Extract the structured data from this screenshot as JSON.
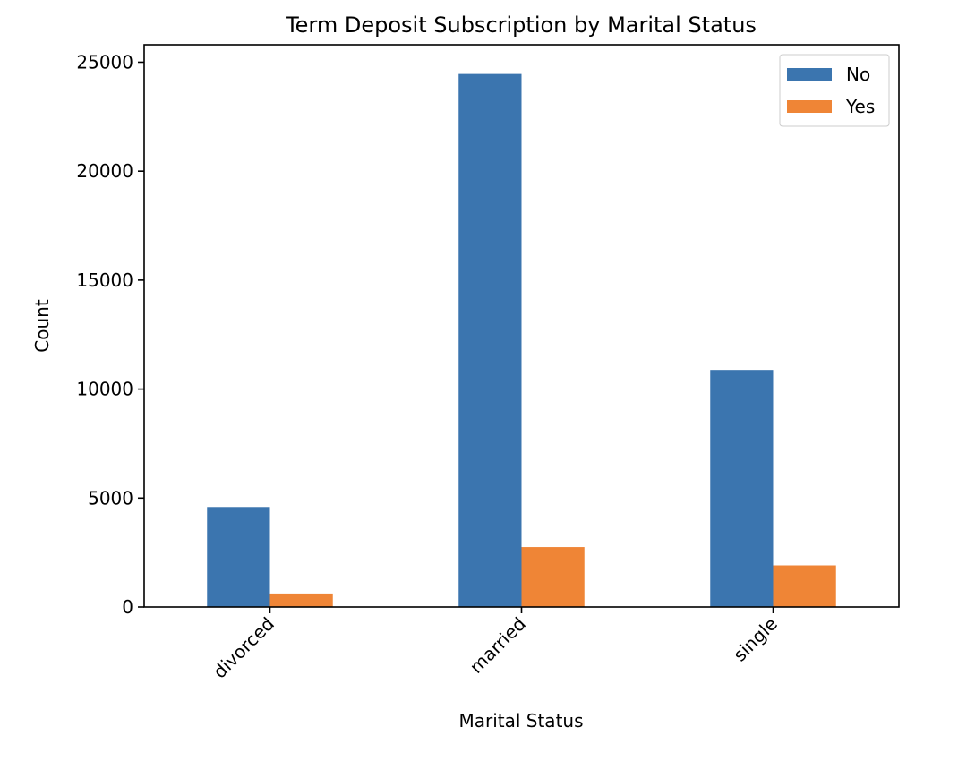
{
  "chart_data": {
    "type": "bar",
    "title": "Term Deposit Subscription by Marital Status",
    "xlabel": "Marital Status",
    "ylabel": "Count",
    "categories": [
      "divorced",
      "married",
      "single"
    ],
    "series": [
      {
        "name": "No",
        "values": [
          4590,
          24460,
          10880
        ],
        "color": "#3b75af"
      },
      {
        "name": "Yes",
        "values": [
          620,
          2750,
          1910
        ],
        "color": "#ef8536"
      }
    ],
    "ylim": [
      0,
      25800
    ],
    "yticks": [
      0,
      5000,
      10000,
      15000,
      20000,
      25000
    ],
    "xtick_rotation": 45,
    "grid": false,
    "legend_position": "top-right"
  }
}
